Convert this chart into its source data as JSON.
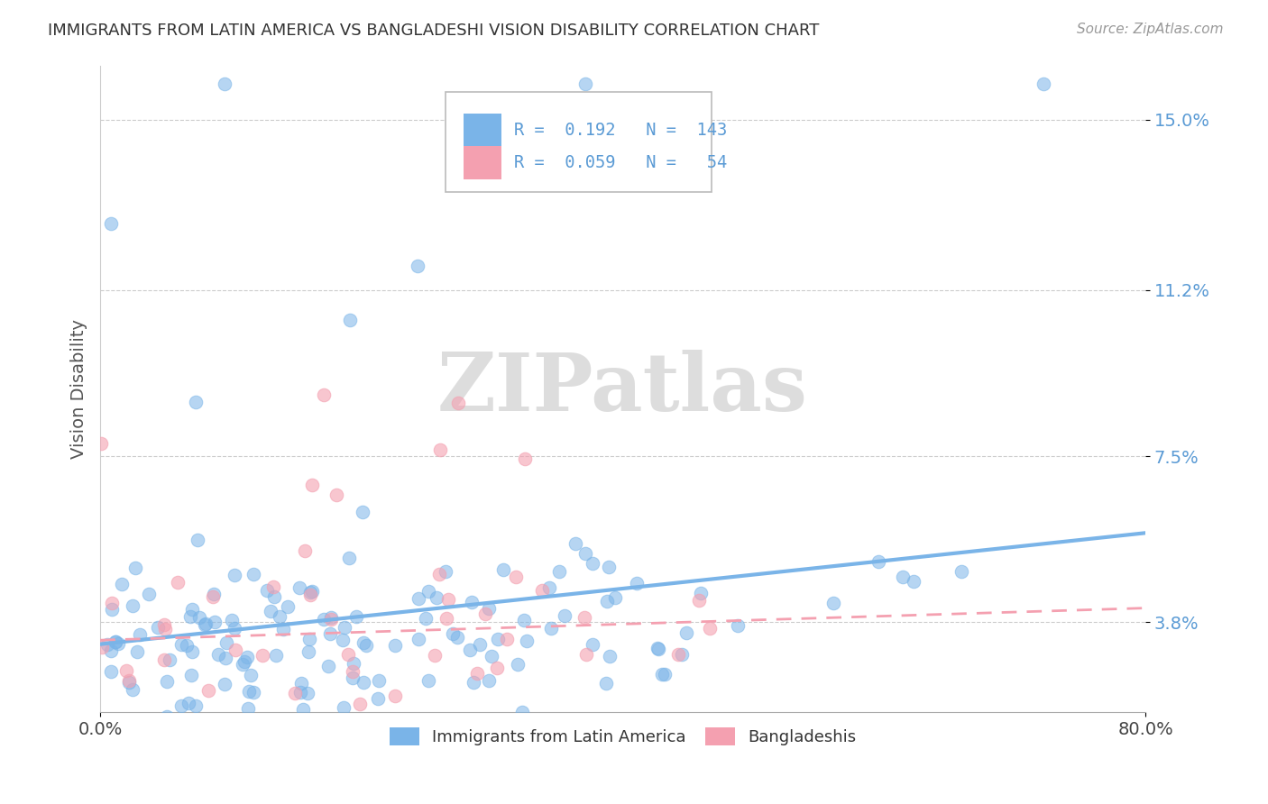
{
  "title": "IMMIGRANTS FROM LATIN AMERICA VS BANGLADESHI VISION DISABILITY CORRELATION CHART",
  "source_text": "Source: ZipAtlas.com",
  "ylabel": "Vision Disability",
  "xlim": [
    0.0,
    0.8
  ],
  "ylim": [
    0.018,
    0.162
  ],
  "yticks": [
    0.038,
    0.075,
    0.112,
    0.15
  ],
  "ytick_labels": [
    "3.8%",
    "7.5%",
    "11.2%",
    "15.0%"
  ],
  "xticks": [
    0.0,
    0.8
  ],
  "xtick_labels": [
    "0.0%",
    "80.0%"
  ],
  "series1_color": "#7ab4e8",
  "series2_color": "#f4a0b0",
  "series1_label": "Immigrants from Latin America",
  "series2_label": "Bangladeshis",
  "R1": 0.192,
  "N1": 143,
  "R2": 0.059,
  "N2": 54,
  "watermark": "ZIPatlas",
  "background_color": "#ffffff",
  "grid_color": "#cccccc",
  "title_color": "#333333",
  "axis_label_color": "#555555",
  "tick_label_color_right": "#5b9bd5",
  "legend_text_color": "#5b9bd5"
}
